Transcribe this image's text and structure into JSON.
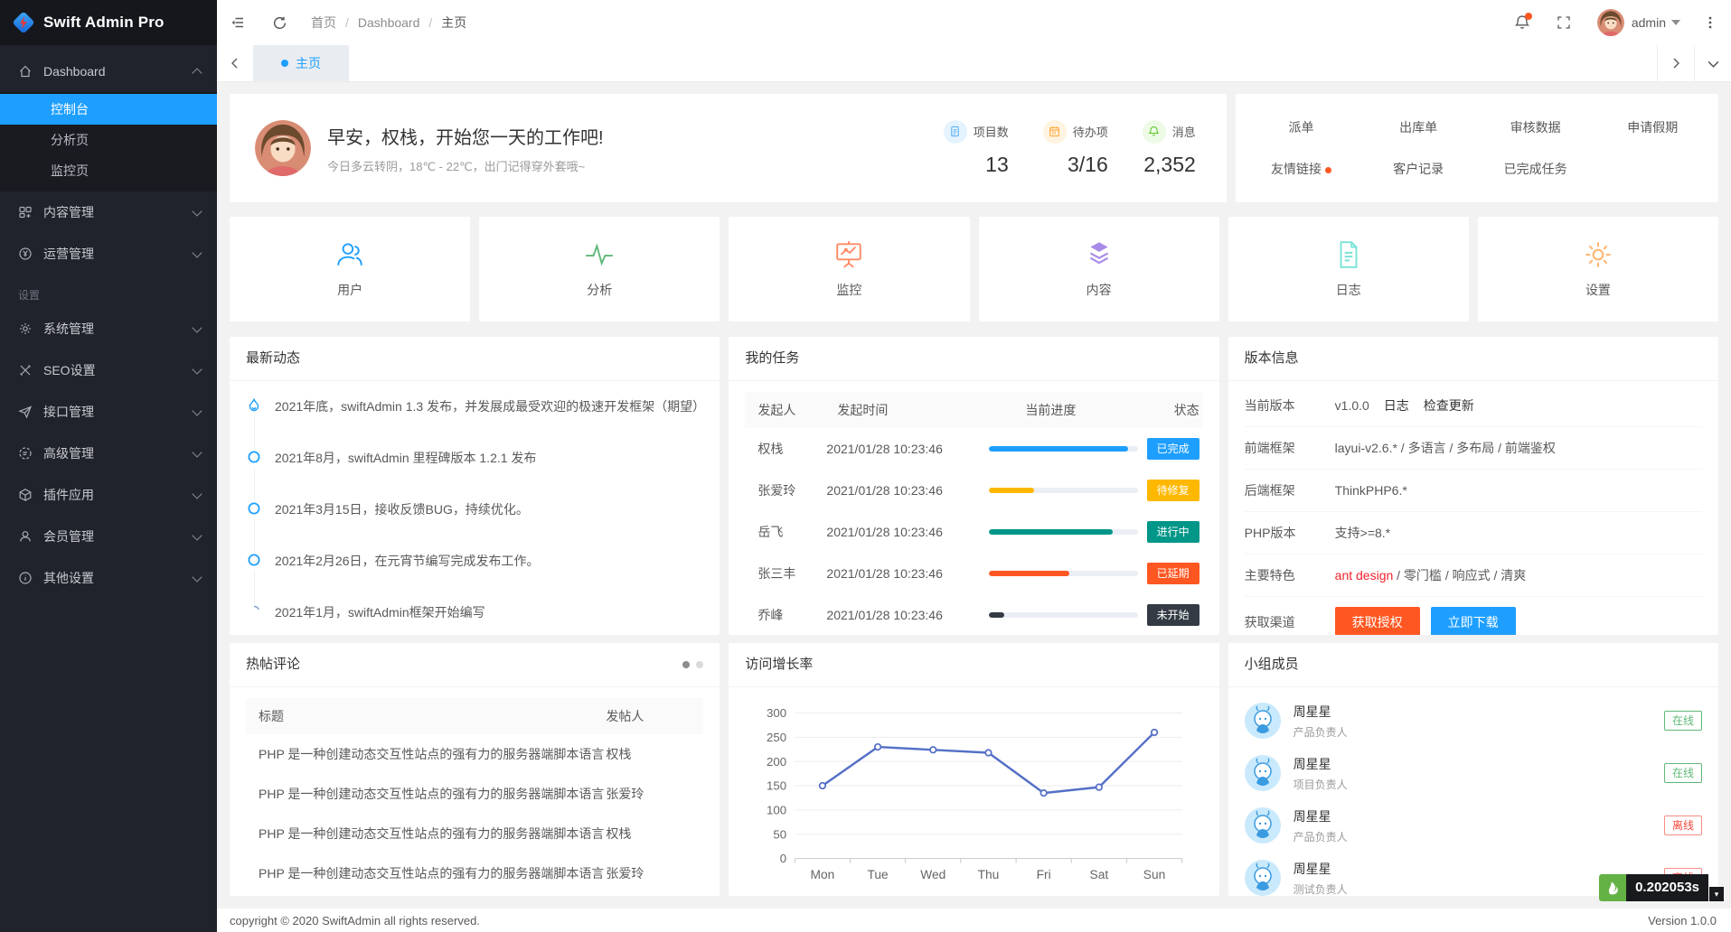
{
  "app": {
    "logo_title": "Swift Admin Pro"
  },
  "header": {
    "breadcrumb": [
      "首页",
      "Dashboard",
      "主页"
    ],
    "username": "admin"
  },
  "tabbar": {
    "active_tab": "主页"
  },
  "sidebar": {
    "dashboard_label": "Dashboard",
    "dashboard_children": [
      "控制台",
      "分析页",
      "监控页"
    ],
    "groups": [
      "内容管理",
      "运营管理"
    ],
    "section_label": "设置",
    "settings_groups": [
      "系统管理",
      "SEO设置",
      "接口管理",
      "高级管理",
      "插件应用",
      "会员管理",
      "其他设置"
    ]
  },
  "welcome": {
    "greeting": "早安，权栈，开始您一天的工作吧!",
    "weather": "今日多云转阴，18℃ - 22℃，出门记得穿外套哦~",
    "stats": [
      {
        "label": "项目数",
        "value": "13"
      },
      {
        "label": "待办项",
        "value": "3/16"
      },
      {
        "label": "消息",
        "value": "2,352"
      }
    ]
  },
  "quicklinks": {
    "items": [
      "派单",
      "出库单",
      "审核数据",
      "申请假期",
      "友情链接",
      "客户记录",
      "已完成任务"
    ]
  },
  "shortcuts": [
    "用户",
    "分析",
    "监控",
    "内容",
    "日志",
    "设置"
  ],
  "news": {
    "title": "最新动态",
    "items": [
      "2021年底，swiftAdmin 1.3 发布，并发展成最受欢迎的极速开发框架（期望）",
      "2021年8月，swiftAdmin 里程碑版本 1.2.1 发布",
      "2021年3月15日，接收反馈BUG，持续优化。",
      "2021年2月26日，在元宵节编写完成发布工作。",
      "2021年1月，swiftAdmin框架开始编写"
    ]
  },
  "tasks": {
    "title": "我的任务",
    "headers": [
      "发起人",
      "发起时间",
      "当前进度",
      "状态"
    ],
    "rows": [
      {
        "name": "权栈",
        "time": "2021/01/28 10:23:46",
        "progress": 93,
        "status": "已完成",
        "color": "#1E9FFF"
      },
      {
        "name": "张爱玲",
        "time": "2021/01/28 10:23:46",
        "progress": 30,
        "status": "待修复",
        "color": "#FFB800"
      },
      {
        "name": "岳飞",
        "time": "2021/01/28 10:23:46",
        "progress": 83,
        "status": "进行中",
        "color": "#009688"
      },
      {
        "name": "张三丰",
        "time": "2021/01/28 10:23:46",
        "progress": 54,
        "status": "已延期",
        "color": "#FF5722"
      },
      {
        "name": "乔峰",
        "time": "2021/01/28 10:23:46",
        "progress": 10,
        "status": "未开始",
        "color": "#343B45"
      }
    ]
  },
  "version": {
    "title": "版本信息",
    "current": {
      "label": "当前版本",
      "value": "v1.0.0",
      "links": [
        "日志",
        "检查更新"
      ]
    },
    "rows": [
      {
        "label": "前端框架",
        "value": "layui-v2.6.* / 多语言 / 多布局 / 前端鉴权"
      },
      {
        "label": "后端框架",
        "value": "ThinkPHP6.*"
      },
      {
        "label": "PHP版本",
        "value": "支持>=8.*"
      }
    ],
    "features": {
      "label": "主要特色",
      "highlight": "ant design",
      "rest": " / 零门槛 / 响应式 / 清爽"
    },
    "channel": {
      "label": "获取渠道",
      "buttons": [
        {
          "label": "获取授权",
          "color": "#FF5722"
        },
        {
          "label": "立即下载",
          "color": "#1E9FFF"
        }
      ]
    }
  },
  "comments": {
    "title": "热帖评论",
    "headers": [
      "标题",
      "发帖人"
    ],
    "rows": [
      {
        "title": "PHP 是一种创建动态交互性站点的强有力的服务器端脚本语言",
        "poster": "权栈"
      },
      {
        "title": "PHP 是一种创建动态交互性站点的强有力的服务器端脚本语言",
        "poster": "张爱玲"
      },
      {
        "title": "PHP 是一种创建动态交互性站点的强有力的服务器端脚本语言",
        "poster": "权栈"
      },
      {
        "title": "PHP 是一种创建动态交互性站点的强有力的服务器端脚本语言",
        "poster": "张爱玲"
      }
    ]
  },
  "growth": {
    "title": "访问增长率"
  },
  "chart_data": {
    "type": "line",
    "title": "访问增长率",
    "x": [
      "Mon",
      "Tue",
      "Wed",
      "Thu",
      "Fri",
      "Sat",
      "Sun"
    ],
    "series": [
      {
        "name": "访问增长率",
        "values": [
          150,
          230,
          224,
          218,
          135,
          147,
          260
        ]
      }
    ],
    "ylim": [
      0,
      300
    ],
    "yticks": [
      0,
      50,
      100,
      150,
      200,
      250,
      300
    ],
    "grid": true,
    "line_color": "#5470C6"
  },
  "team": {
    "title": "小组成员",
    "members": [
      {
        "name": "周星星",
        "role": "产品负责人",
        "status": "在线",
        "online": true
      },
      {
        "name": "周星星",
        "role": "项目负责人",
        "status": "在线",
        "online": true
      },
      {
        "name": "周星星",
        "role": "产品负责人",
        "status": "离线",
        "online": false
      },
      {
        "name": "周星星",
        "role": "测试负责人",
        "status": "离线",
        "online": false
      }
    ]
  },
  "footer": {
    "copyright": "copyright © 2020 SwiftAdmin all rights reserved.",
    "version": "Version 1.0.0"
  },
  "debug": {
    "time": "0.202053s"
  }
}
